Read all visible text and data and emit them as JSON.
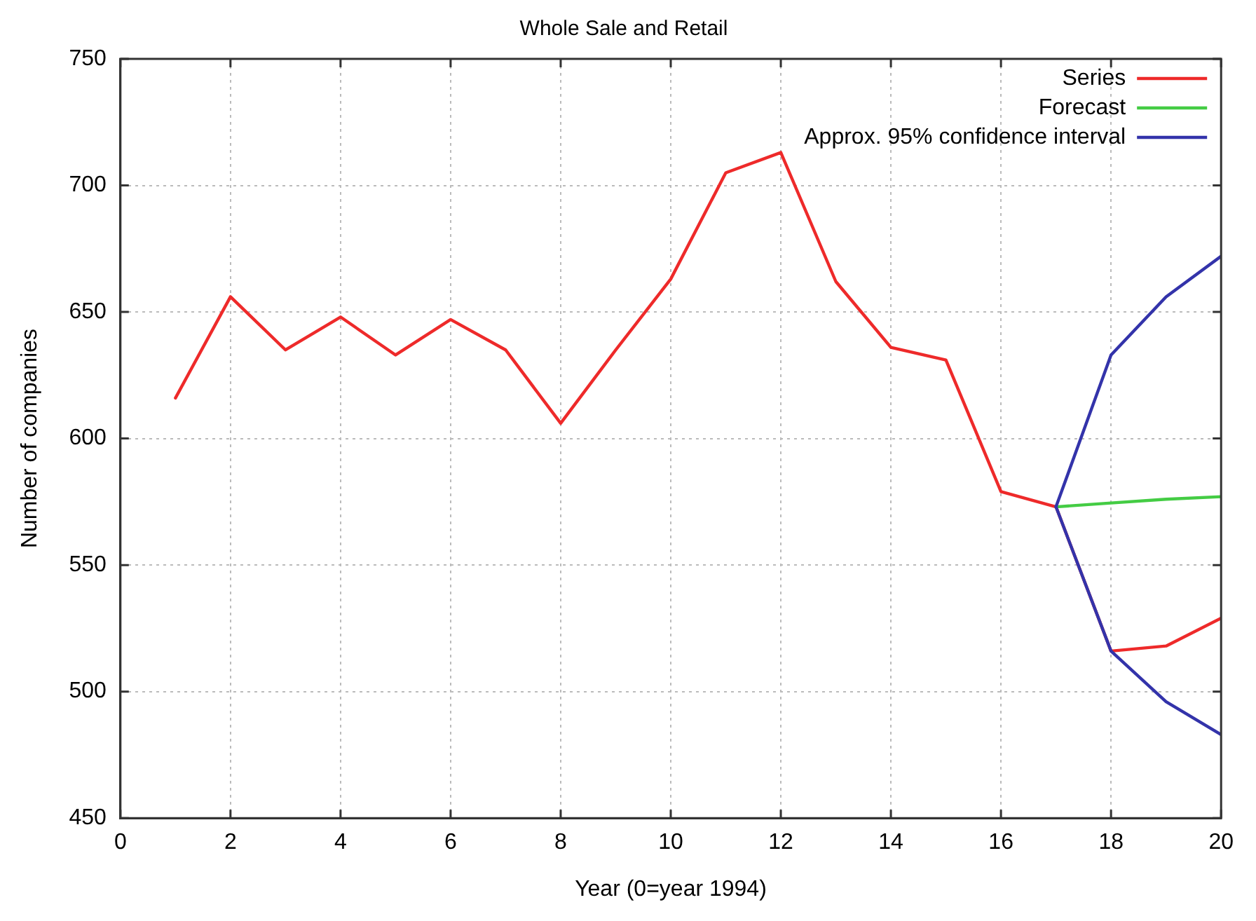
{
  "chart_data": {
    "type": "line",
    "title": "Whole Sale and Retail",
    "xlabel": "Year (0=year 1994)",
    "ylabel": "Number of companies",
    "xlim": [
      0,
      20
    ],
    "xticks": [
      0,
      2,
      4,
      6,
      8,
      10,
      12,
      14,
      16,
      18,
      20
    ],
    "ylim": [
      450,
      750
    ],
    "yticks": [
      450,
      500,
      550,
      600,
      650,
      700,
      750
    ],
    "grid": true,
    "legend": "top right",
    "marker": "none",
    "line_style": "solid",
    "series": [
      {
        "name": "Series",
        "color": "#ee2a2a",
        "x": [
          1,
          2,
          3,
          4,
          5,
          6,
          7,
          8,
          9,
          10,
          11,
          12,
          13,
          14,
          15,
          16,
          17,
          18,
          19,
          20
        ],
        "values": [
          616,
          656,
          635,
          648,
          633,
          647,
          635,
          606,
          635,
          663,
          705,
          713,
          662,
          636,
          631,
          579,
          573,
          516,
          518,
          529
        ]
      },
      {
        "name": "Forecast",
        "color": "#44cc44",
        "x": [
          17,
          18,
          19,
          20
        ],
        "values": [
          573,
          574.5,
          576,
          577
        ]
      },
      {
        "name": "Approx. 95% confidence interval",
        "color": "#3333aa",
        "x": [
          17,
          18,
          19,
          20
        ],
        "values": [
          573,
          633,
          656,
          672
        ]
      },
      {
        "color": "#3333aa",
        "x": [
          17,
          18,
          19,
          20
        ],
        "values": [
          573,
          516,
          496,
          483
        ]
      }
    ]
  }
}
